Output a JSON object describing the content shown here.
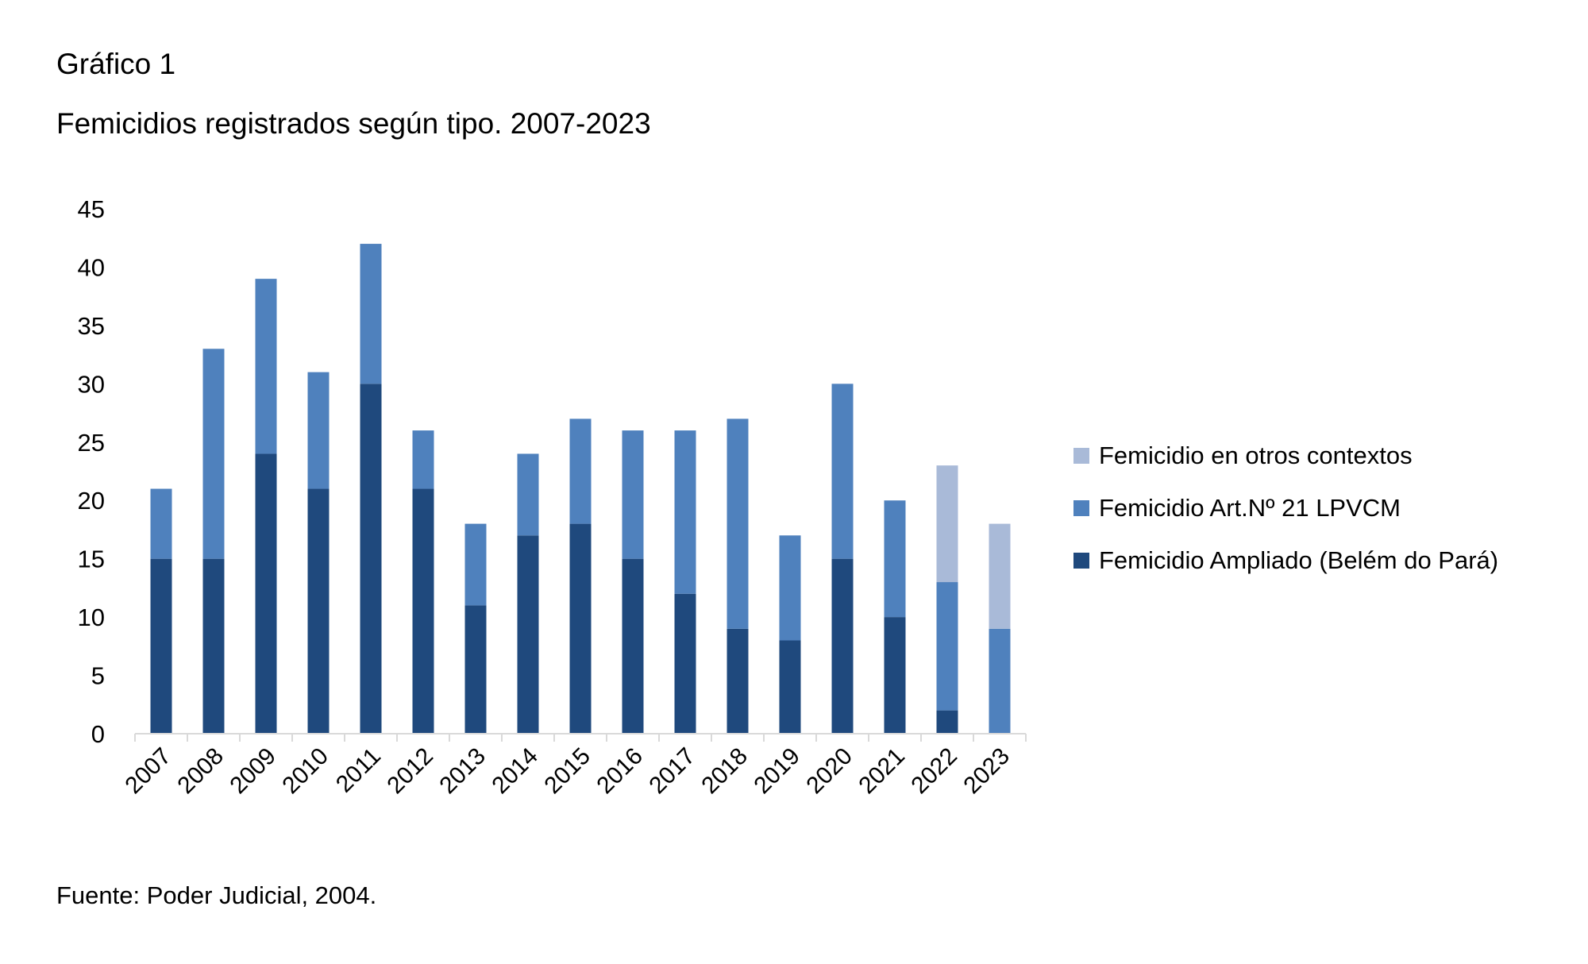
{
  "header": {
    "label": "Gráfico 1",
    "title": "Femicidios registrados según tipo. 2007-2023"
  },
  "source": "Fuente: Poder Judicial, 2004.",
  "chart_data": {
    "type": "bar",
    "stacked": true,
    "title": "Femicidios registrados según tipo. 2007-2023",
    "categories": [
      "2007",
      "2008",
      "2009",
      "2010",
      "2011",
      "2012",
      "2013",
      "2014",
      "2015",
      "2016",
      "2017",
      "2018",
      "2019",
      "2020",
      "2021",
      "2022",
      "2023"
    ],
    "series": [
      {
        "name": "Femicidio Ampliado (Belém do Pará)",
        "color": "#1f497d",
        "values": [
          15,
          15,
          24,
          21,
          30,
          21,
          11,
          17,
          18,
          15,
          12,
          9,
          8,
          15,
          10,
          2,
          0
        ]
      },
      {
        "name": "Femicidio Art.Nº 21 LPVCM",
        "color": "#4f81bd",
        "values": [
          6,
          18,
          15,
          10,
          12,
          5,
          7,
          7,
          9,
          11,
          14,
          18,
          9,
          15,
          10,
          11,
          9
        ]
      },
      {
        "name": "Femicidio en otros contextos",
        "color": "#a9bad8",
        "values": [
          0,
          0,
          0,
          0,
          0,
          0,
          0,
          0,
          0,
          0,
          0,
          0,
          0,
          0,
          0,
          10,
          9
        ]
      }
    ],
    "yticks": [
      0,
      5,
      10,
      15,
      20,
      25,
      30,
      35,
      40,
      45
    ],
    "ylim": [
      0,
      45
    ],
    "grid": false,
    "legend": "right",
    "xlabel": "",
    "ylabel": ""
  }
}
